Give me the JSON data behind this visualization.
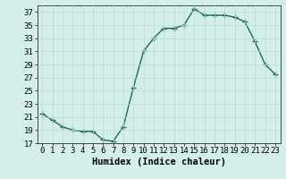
{
  "title": "",
  "xlabel": "Humidex (Indice chaleur)",
  "x_values": [
    0,
    1,
    2,
    3,
    4,
    5,
    6,
    7,
    8,
    9,
    10,
    11,
    12,
    13,
    14,
    15,
    16,
    17,
    18,
    19,
    20,
    21,
    22,
    23
  ],
  "y_values": [
    21.5,
    20.5,
    19.5,
    19.0,
    18.8,
    18.8,
    17.5,
    17.3,
    19.5,
    25.5,
    31.0,
    33.0,
    34.5,
    34.5,
    35.0,
    37.5,
    36.5,
    36.5,
    36.5,
    36.2,
    35.5,
    32.5,
    29.0,
    27.5
  ],
  "line_color": "#1a6b5a",
  "marker": "+",
  "marker_size": 4,
  "marker_linewidth": 0.9,
  "bg_color": "#d4eeea",
  "grid_color": "#b8ddd8",
  "ylim": [
    17,
    38
  ],
  "yticks": [
    17,
    19,
    21,
    23,
    25,
    27,
    29,
    31,
    33,
    35,
    37
  ],
  "xlim": [
    -0.5,
    23.5
  ],
  "xticks": [
    0,
    1,
    2,
    3,
    4,
    5,
    6,
    7,
    8,
    9,
    10,
    11,
    12,
    13,
    14,
    15,
    16,
    17,
    18,
    19,
    20,
    21,
    22,
    23
  ],
  "tick_fontsize": 6.5,
  "label_fontsize": 7.5,
  "linewidth": 1.0
}
